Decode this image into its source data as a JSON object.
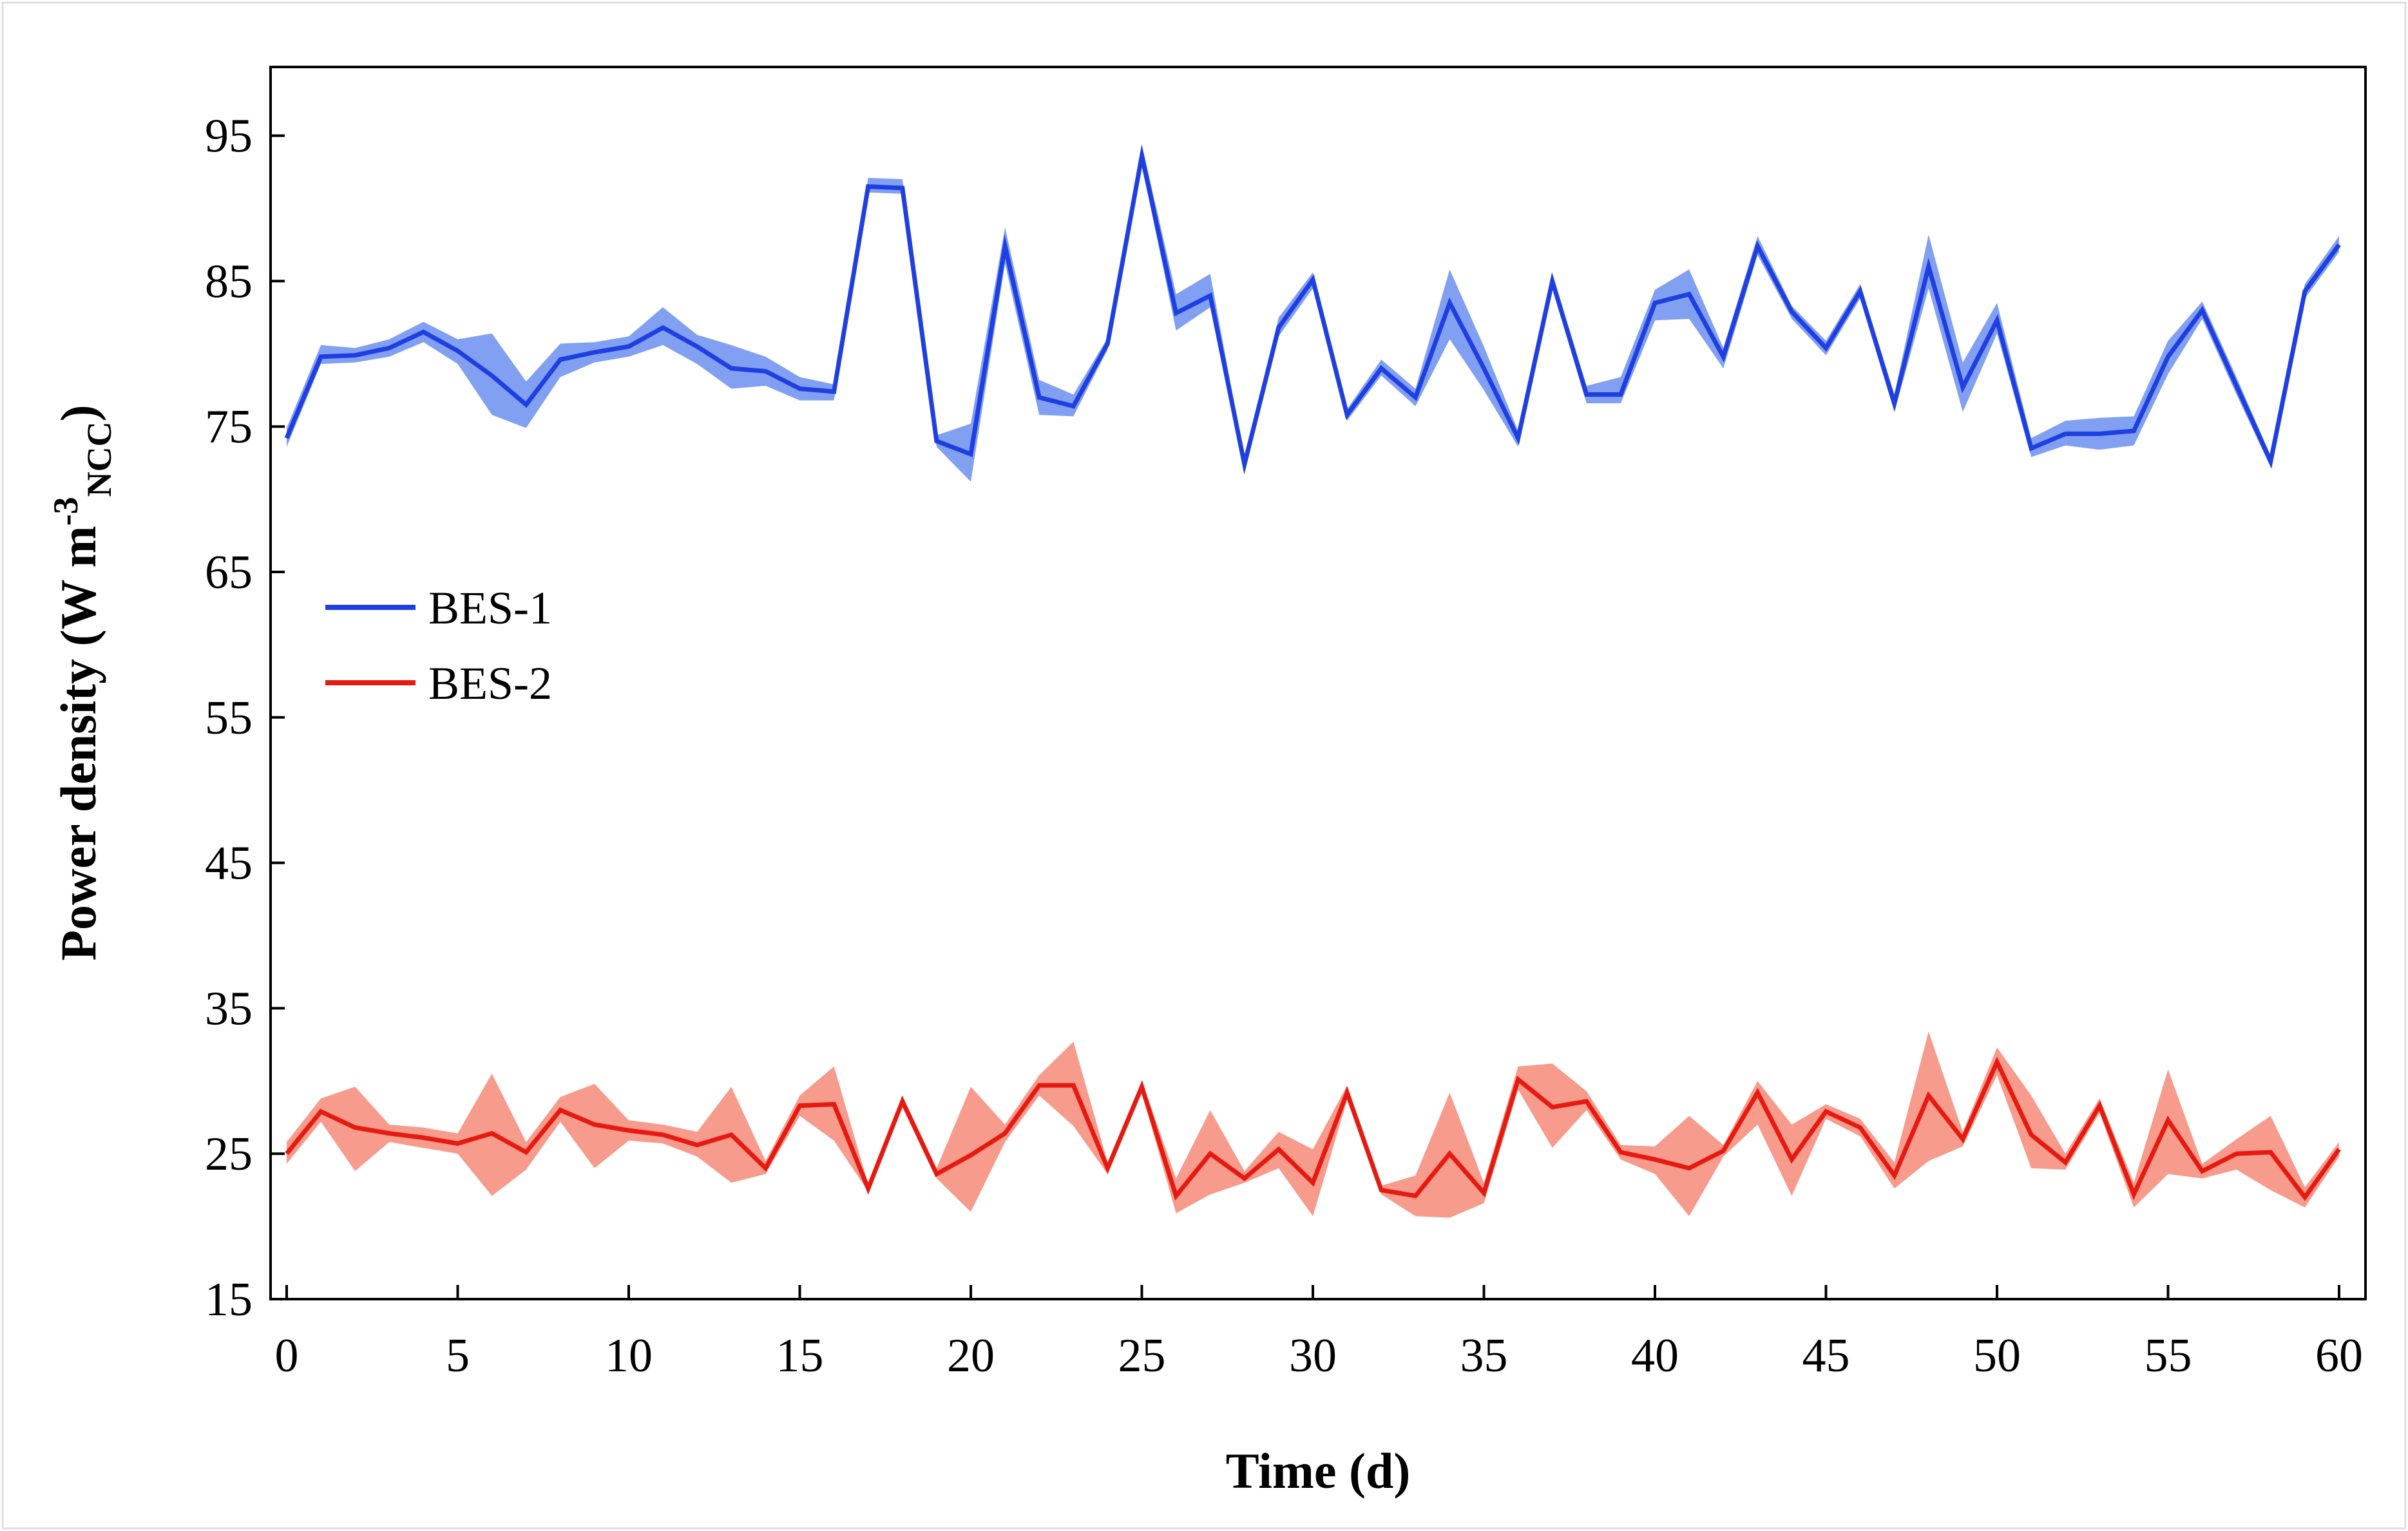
{
  "chart_data": {
    "type": "line",
    "title": "",
    "xlabel": "Time (d)",
    "ylabel": {
      "main": "Power density (W m",
      "sup": "-3",
      "sub": "NCC",
      "close": ")"
    },
    "xlim": [
      -0.5,
      60.5
    ],
    "ylim": [
      15,
      100
    ],
    "xticks": [
      0,
      5,
      10,
      15,
      20,
      25,
      30,
      35,
      40,
      45,
      50,
      55,
      60
    ],
    "yticks": [
      15,
      25,
      35,
      45,
      55,
      65,
      75,
      85,
      95
    ],
    "legend_position": "middle-left",
    "series": [
      {
        "name": "BES-1",
        "color": "#1f3fe0",
        "band_color": "#6b8ff0",
        "x": [
          0,
          1,
          2,
          3,
          4,
          5,
          6,
          7,
          8,
          9,
          10,
          11,
          12,
          13,
          14,
          15,
          16,
          17,
          18,
          19,
          20,
          21,
          22,
          23,
          24,
          25,
          26,
          27,
          28,
          29,
          30,
          31,
          32,
          33,
          34,
          35,
          36,
          37,
          38,
          39,
          40,
          41,
          42,
          43,
          44,
          45,
          46,
          47,
          48,
          49,
          50,
          51,
          52,
          53,
          54,
          55,
          56,
          57,
          58,
          59,
          60
        ],
        "values": [
          74.2,
          79.8,
          79.9,
          80.4,
          81.5,
          80.2,
          78.5,
          76.5,
          79.6,
          80.1,
          80.5,
          81.8,
          80.5,
          79.0,
          78.8,
          77.6,
          77.4,
          91.5,
          91.4,
          74.0,
          73.1,
          87.4,
          77.0,
          76.4,
          80.7,
          93.6,
          82.8,
          84.0,
          72.4,
          81.8,
          85.1,
          75.8,
          79.0,
          77.0,
          83.5,
          79.0,
          74.2,
          85.0,
          77.2,
          77.2,
          83.5,
          84.1,
          79.8,
          87.4,
          82.9,
          80.4,
          84.3,
          76.6,
          86.0,
          77.7,
          82.3,
          73.5,
          74.5,
          74.5,
          74.7,
          79.8,
          83.0,
          77.8,
          72.6,
          84.3,
          87.5
        ],
        "lower": [
          73.6,
          79.3,
          79.4,
          79.8,
          80.8,
          79.3,
          75.8,
          74.9,
          78.4,
          79.4,
          79.8,
          80.6,
          79.3,
          77.6,
          77.8,
          76.8,
          76.8,
          91.1,
          91.0,
          73.6,
          71.2,
          86.2,
          75.8,
          75.7,
          80.3,
          93.0,
          81.6,
          83.2,
          72.0,
          81.2,
          84.5,
          75.4,
          78.5,
          76.4,
          81.0,
          77.5,
          73.6,
          84.5,
          76.6,
          76.6,
          82.3,
          82.4,
          79.0,
          86.8,
          82.4,
          79.9,
          83.8,
          76.0,
          84.5,
          76.0,
          81.4,
          72.9,
          73.7,
          73.4,
          73.7,
          78.6,
          82.4,
          77.2,
          72.2,
          83.8,
          87.0
        ],
        "upper": [
          74.9,
          80.6,
          80.4,
          81.0,
          82.2,
          81.0,
          81.4,
          78.1,
          80.7,
          80.8,
          81.2,
          83.2,
          81.3,
          80.6,
          79.8,
          78.4,
          77.9,
          92.1,
          92.0,
          74.4,
          75.2,
          88.7,
          78.2,
          77.2,
          81.1,
          94.4,
          84.1,
          85.5,
          72.8,
          82.5,
          85.6,
          76.2,
          79.6,
          77.6,
          85.8,
          80.5,
          74.7,
          85.5,
          77.8,
          78.4,
          84.4,
          85.8,
          80.4,
          88.1,
          83.3,
          80.9,
          84.8,
          77.2,
          88.2,
          79.4,
          83.5,
          74.2,
          75.4,
          75.6,
          75.7,
          80.9,
          83.6,
          78.4,
          73.0,
          84.8,
          88.1
        ]
      },
      {
        "name": "BES-2",
        "color": "#e61a10",
        "band_color": "#f68a78",
        "x": [
          0,
          1,
          2,
          3,
          4,
          5,
          6,
          7,
          8,
          9,
          10,
          11,
          12,
          13,
          14,
          15,
          16,
          17,
          18,
          19,
          20,
          21,
          22,
          23,
          24,
          25,
          26,
          27,
          28,
          29,
          30,
          31,
          32,
          33,
          34,
          35,
          36,
          37,
          38,
          39,
          40,
          41,
          42,
          43,
          44,
          45,
          46,
          47,
          48,
          49,
          50,
          51,
          52,
          53,
          54,
          55,
          56,
          57,
          58,
          59,
          60
        ],
        "values": [
          25.0,
          27.9,
          26.8,
          26.4,
          26.1,
          25.7,
          26.4,
          25.1,
          28.0,
          27.0,
          26.6,
          26.3,
          25.6,
          26.3,
          24.0,
          28.3,
          28.4,
          22.6,
          28.6,
          23.6,
          24.9,
          26.4,
          29.7,
          29.7,
          24.0,
          29.6,
          22.1,
          25.0,
          23.3,
          25.3,
          23.0,
          29.2,
          22.5,
          22.1,
          25.0,
          22.3,
          30.1,
          28.2,
          28.6,
          25.1,
          24.6,
          24.0,
          25.2,
          29.2,
          24.6,
          27.9,
          26.8,
          23.5,
          29.0,
          26.0,
          31.3,
          26.3,
          24.4,
          28.3,
          22.2,
          27.3,
          23.8,
          25.0,
          25.1,
          22.0,
          25.3
        ],
        "lower": [
          24.3,
          27.2,
          23.8,
          25.8,
          25.4,
          25.0,
          22.1,
          23.9,
          27.2,
          24.0,
          25.9,
          25.7,
          24.8,
          23.0,
          23.6,
          27.6,
          25.9,
          22.4,
          28.2,
          23.3,
          21.0,
          25.8,
          29.0,
          26.9,
          23.6,
          29.2,
          20.9,
          22.2,
          23.0,
          24.0,
          20.7,
          28.7,
          22.2,
          20.7,
          20.6,
          21.6,
          29.4,
          25.4,
          28.0,
          24.6,
          23.6,
          20.7,
          24.8,
          27.0,
          22.1,
          27.4,
          26.2,
          22.6,
          24.5,
          25.5,
          30.4,
          24.0,
          23.9,
          27.8,
          21.3,
          23.6,
          23.3,
          23.9,
          22.5,
          21.3,
          24.8
        ],
        "upper": [
          25.8,
          28.8,
          29.6,
          27.0,
          26.8,
          26.4,
          30.5,
          25.8,
          28.9,
          29.8,
          27.3,
          27.0,
          26.5,
          29.6,
          24.5,
          29.0,
          31.0,
          22.9,
          29.0,
          24.0,
          29.6,
          27.0,
          30.4,
          32.7,
          24.4,
          30.0,
          23.3,
          28.0,
          23.8,
          26.5,
          25.3,
          29.7,
          22.8,
          23.5,
          29.2,
          23.0,
          31.0,
          31.2,
          29.3,
          25.6,
          25.5,
          27.6,
          25.6,
          30.0,
          27.0,
          28.4,
          27.4,
          24.4,
          33.4,
          26.5,
          32.3,
          29.0,
          25.0,
          28.8,
          23.0,
          30.8,
          24.3,
          26.0,
          27.6,
          22.7,
          25.8
        ]
      }
    ]
  }
}
